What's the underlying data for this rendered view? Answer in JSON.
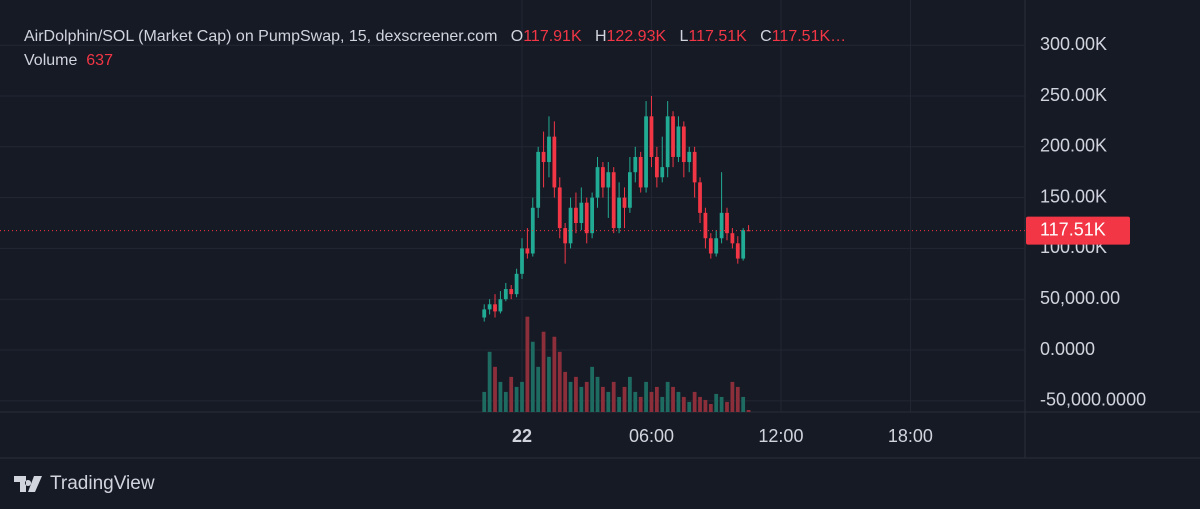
{
  "header": {
    "title": "AirDolphin/SOL (Market Cap) on PumpSwap, 15, dexscreener.com",
    "o_key": "O",
    "o_val": "117.91K",
    "h_key": "H",
    "h_val": "122.93K",
    "l_key": "L",
    "l_val": "117.51K",
    "c_key": "C",
    "c_val": "117.51K…",
    "volume_key": "Volume",
    "volume_val": "637"
  },
  "footer": {
    "brand": "TradingView"
  },
  "chart_data": {
    "type": "candlestick",
    "x": [
      -1.75,
      -1.5,
      -1.25,
      -1,
      -0.75,
      -0.5,
      -0.25,
      0,
      0.25,
      0.5,
      0.75,
      1,
      1.25,
      1.5,
      1.75,
      2,
      2.25,
      2.5,
      2.75,
      3,
      3.25,
      3.5,
      3.75,
      4,
      4.25,
      4.5,
      4.75,
      5,
      5.25,
      5.5,
      5.75,
      6,
      6.25,
      6.5,
      6.75,
      7,
      7.25,
      7.5,
      7.75,
      8,
      8.25,
      8.5,
      8.75,
      9,
      9.25,
      9.5,
      9.75,
      10,
      10.25,
      10.5
    ],
    "open": [
      32000,
      40000,
      45000,
      38000,
      50000,
      60000,
      55000,
      75000,
      100000,
      95000,
      140000,
      195000,
      185000,
      210000,
      160000,
      120000,
      105000,
      140000,
      125000,
      145000,
      115000,
      150000,
      180000,
      160000,
      175000,
      120000,
      150000,
      140000,
      175000,
      190000,
      160000,
      230000,
      190000,
      170000,
      180000,
      230000,
      190000,
      220000,
      185000,
      195000,
      165000,
      135000,
      110000,
      95000,
      110000,
      135000,
      115000,
      105000,
      90000,
      117910
    ],
    "high": [
      45000,
      50000,
      55000,
      58000,
      66000,
      64000,
      80000,
      110000,
      120000,
      150000,
      200000,
      215000,
      230000,
      225000,
      170000,
      125000,
      150000,
      155000,
      160000,
      150000,
      155000,
      190000,
      185000,
      185000,
      180000,
      165000,
      160000,
      190000,
      200000,
      195000,
      245000,
      250000,
      200000,
      210000,
      245000,
      235000,
      230000,
      225000,
      200000,
      200000,
      170000,
      140000,
      115000,
      118000,
      175000,
      140000,
      120000,
      112000,
      120000,
      122930
    ],
    "low": [
      28000,
      35000,
      32000,
      36000,
      48000,
      50000,
      52000,
      70000,
      90000,
      92000,
      130000,
      160000,
      170000,
      150000,
      110000,
      85000,
      100000,
      115000,
      118000,
      105000,
      110000,
      140000,
      150000,
      130000,
      115000,
      115000,
      120000,
      135000,
      165000,
      155000,
      155000,
      180000,
      160000,
      165000,
      170000,
      180000,
      185000,
      170000,
      175000,
      150000,
      125000,
      100000,
      90000,
      92000,
      105000,
      108000,
      100000,
      85000,
      88000,
      117510
    ],
    "close": [
      40000,
      45000,
      38000,
      50000,
      60000,
      55000,
      75000,
      100000,
      95000,
      140000,
      195000,
      185000,
      210000,
      160000,
      120000,
      105000,
      140000,
      125000,
      145000,
      115000,
      150000,
      180000,
      160000,
      175000,
      120000,
      150000,
      140000,
      175000,
      190000,
      160000,
      230000,
      190000,
      170000,
      180000,
      230000,
      190000,
      220000,
      185000,
      195000,
      165000,
      135000,
      110000,
      95000,
      110000,
      135000,
      115000,
      105000,
      90000,
      118000,
      117510
    ],
    "volume": [
      6400,
      19200,
      14400,
      9600,
      6400,
      11200,
      8000,
      9600,
      30400,
      22400,
      14400,
      25600,
      17600,
      24000,
      19200,
      12800,
      9600,
      11200,
      8000,
      9600,
      14400,
      11200,
      8000,
      6400,
      9600,
      4800,
      8000,
      11200,
      6400,
      4800,
      9600,
      6400,
      8000,
      4800,
      9600,
      8000,
      6400,
      4800,
      3200,
      6400,
      4800,
      3840,
      2560,
      5760,
      4800,
      3200,
      9600,
      8000,
      4800,
      637
    ],
    "volume_lim": [
      0,
      125000
    ],
    "up_color": "#22ab94",
    "down_color": "#f23645",
    "volume_up_color": "#1e6b62",
    "volume_down_color": "#8c2f3a",
    "last_price": {
      "value": 117510,
      "label": "117.51K"
    },
    "xlim": [
      -24.19,
      23.31
    ],
    "xticks": [
      {
        "value": 0,
        "label": "22"
      },
      {
        "value": 6,
        "label": "06:00"
      },
      {
        "value": 12,
        "label": "12:00"
      },
      {
        "value": 18,
        "label": "18:00"
      }
    ],
    "ylim": [
      -61000,
      324800
    ],
    "yticks": [
      {
        "value": -50000,
        "label": "-50,000.0000"
      },
      {
        "value": 0,
        "label": "0.0000"
      },
      {
        "value": 50000,
        "label": "50,000.00"
      },
      {
        "value": 100000,
        "label": "100.00K"
      },
      {
        "value": 150000,
        "label": "150.00K"
      },
      {
        "value": 200000,
        "label": "200.00K"
      },
      {
        "value": 250000,
        "label": "250.00K"
      },
      {
        "value": 300000,
        "label": "300.00K"
      }
    ],
    "grid": true
  }
}
